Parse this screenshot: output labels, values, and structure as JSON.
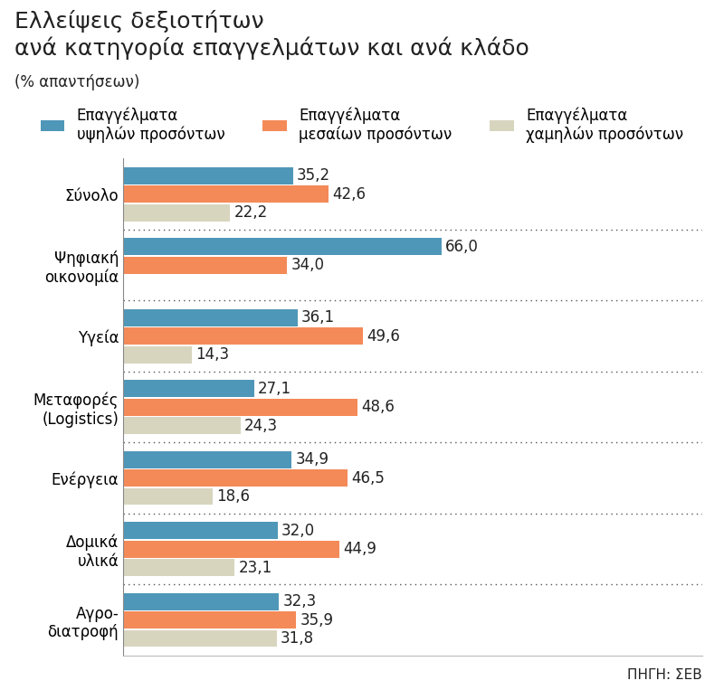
{
  "chart_data": {
    "type": "bar",
    "orientation": "horizontal",
    "title": "Ελλείψεις δεξιοτήτων\nανά κατηγορία επαγγελμάτων και ανά κλάδο",
    "subtitle": "(% απαντήσεων)",
    "source": "ΠΗΓΗ: ΣΕΒ",
    "categories": [
      "Σύνολο",
      "Ψηφιακή\nοικονομία",
      "Υγεία",
      "Μεταφορές\n(Logistics)",
      "Ενέργεια",
      "Δομικά\nυλικά",
      "Αγρο-\nδιατροφή"
    ],
    "series": [
      {
        "name": "Επαγγέλματα\nυψηλών προσόντων",
        "color": "#4f97b8",
        "values": [
          35.2,
          66.0,
          36.1,
          27.1,
          34.9,
          32.0,
          32.3
        ],
        "value_labels": [
          "35,2",
          "66,0",
          "36,1",
          "27,1",
          "34,9",
          "32,0",
          "32,3"
        ]
      },
      {
        "name": "Επαγγέλματα\nμεσαίων προσόντων",
        "color": "#f48a58",
        "values": [
          42.6,
          34.0,
          49.6,
          48.6,
          46.5,
          44.9,
          35.9
        ],
        "value_labels": [
          "42,6",
          "34,0",
          "49,6",
          "48,6",
          "46,5",
          "44,9",
          "35,9"
        ]
      },
      {
        "name": "Επαγγέλματα\nχαμηλών προσόντων",
        "color": "#d8d5bf",
        "values": [
          22.2,
          null,
          14.3,
          24.3,
          18.6,
          23.1,
          31.8
        ],
        "value_labels": [
          "22,2",
          null,
          "14,3",
          "24,3",
          "18,6",
          "23,1",
          "31,8"
        ]
      }
    ],
    "xlim": [
      0,
      120
    ],
    "xticks": [],
    "grid": false,
    "legend": "upper center",
    "data_labels": true,
    "tick_labels": "y"
  }
}
